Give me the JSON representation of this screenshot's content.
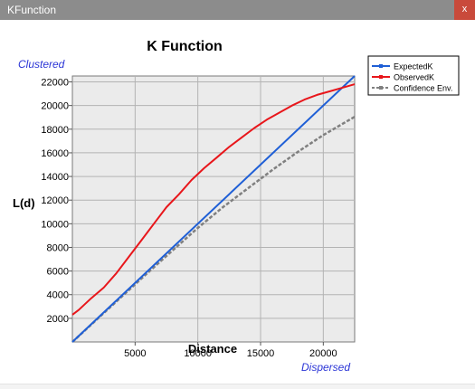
{
  "window": {
    "title": "KFunction",
    "close_label": "x"
  },
  "chart_data": {
    "type": "line",
    "title": "K Function",
    "xlabel": "Distance",
    "ylabel": "L(d)",
    "annotation_top": "Clustered",
    "annotation_bottom": "Dispersed",
    "xlim": [
      0,
      22500
    ],
    "ylim": [
      0,
      22500
    ],
    "xticks": [
      5000,
      10000,
      15000,
      20000
    ],
    "xtick_labels": [
      "5000",
      "10000",
      "15000",
      "20000"
    ],
    "yticks": [
      2000,
      4000,
      6000,
      8000,
      10000,
      12000,
      14000,
      16000,
      18000,
      20000,
      22000
    ],
    "ytick_labels": [
      "2000",
      "4000",
      "6000",
      "8000",
      "10000",
      "12000",
      "14000",
      "16000",
      "18000",
      "20000",
      "22000"
    ],
    "grid": true,
    "legend_position": "top-right",
    "series": [
      {
        "name": "ExpectedK",
        "color": "#1f5fd6",
        "style": "solid",
        "x": [
          0,
          22500
        ],
        "y": [
          0,
          22500
        ]
      },
      {
        "name": "ObservedK",
        "color": "#e8161b",
        "style": "solid",
        "x": [
          0,
          500,
          1500,
          2500,
          3500,
          4500,
          5500,
          6500,
          7500,
          8500,
          9500,
          10500,
          11500,
          12500,
          13500,
          14500,
          15500,
          16500,
          17500,
          18500,
          19500,
          20500,
          21500,
          22500
        ],
        "y": [
          2300,
          2700,
          3700,
          4600,
          5800,
          7200,
          8600,
          10000,
          11400,
          12500,
          13700,
          14700,
          15600,
          16500,
          17300,
          18100,
          18800,
          19400,
          20000,
          20500,
          20900,
          21200,
          21500,
          21800
        ]
      },
      {
        "name": "Confidence Env.",
        "color": "#808080",
        "style": "dashed",
        "x": [
          0,
          2000,
          4000,
          6000,
          8000,
          10000,
          12000,
          14000,
          16000,
          18000,
          20000,
          22500
        ],
        "y": [
          0,
          1950,
          3900,
          5850,
          7750,
          9650,
          11400,
          13000,
          14600,
          16100,
          17500,
          19050
        ]
      }
    ]
  }
}
